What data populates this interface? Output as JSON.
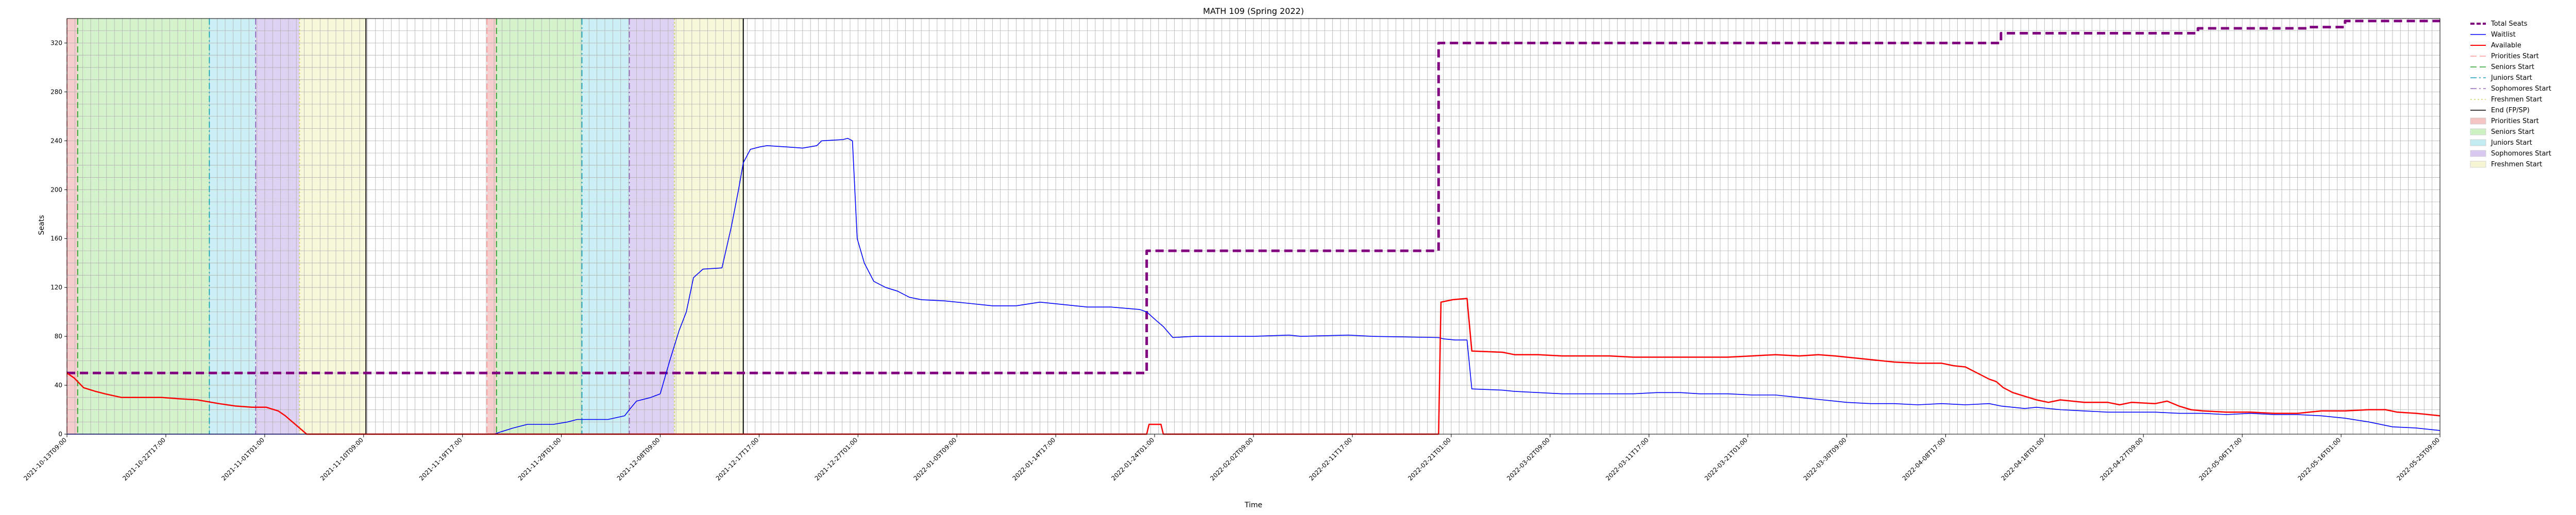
{
  "chart_data": {
    "type": "line",
    "title": "MATH 109 (Spring 2022)",
    "xlabel": "Time",
    "ylabel": "Seats",
    "ylim": [
      0,
      340
    ],
    "xlim": [
      0,
      100
    ],
    "yticks": [
      0,
      40,
      80,
      120,
      160,
      200,
      240,
      280,
      320
    ],
    "grid": true,
    "legend_position": "outside-right",
    "x_tick_labels": [
      "2021-10-13T09:00",
      "2021-10-22T17:00",
      "2021-11-01T01:00",
      "2021-11-10T09:00",
      "2021-11-19T17:00",
      "2021-11-29T01:00",
      "2021-12-08T09:00",
      "2021-12-17T17:00",
      "2021-12-27T01:00",
      "2022-01-05T09:00",
      "2022-01-14T17:00",
      "2022-01-24T01:00",
      "2022-02-02T09:00",
      "2022-02-11T17:00",
      "2022-02-21T01:00",
      "2022-03-02T09:00",
      "2022-03-11T17:00",
      "2022-03-21T01:00",
      "2022-03-30T09:00",
      "2022-04-08T17:00",
      "2022-04-18T01:00",
      "2022-04-27T09:00",
      "2022-05-06T17:00",
      "2022-05-16T01:00",
      "2022-05-25T09:00"
    ],
    "series": [
      {
        "name": "Total Seats",
        "color": "#800080",
        "style": "dashed",
        "points": [
          [
            0,
            50
          ],
          [
            45.5,
            50
          ],
          [
            45.5,
            150
          ],
          [
            57.8,
            150
          ],
          [
            57.8,
            320
          ],
          [
            81.5,
            320
          ],
          [
            81.5,
            328
          ],
          [
            89.8,
            328
          ],
          [
            89.8,
            332
          ],
          [
            94.5,
            332
          ],
          [
            94.5,
            333
          ],
          [
            96,
            333
          ],
          [
            96,
            338
          ],
          [
            100,
            338
          ]
        ]
      },
      {
        "name": "Waitlist",
        "color": "#0000ff",
        "style": "solid",
        "points": [
          [
            0,
            0
          ],
          [
            18,
            0
          ],
          [
            18.3,
            2
          ],
          [
            18.8,
            5
          ],
          [
            19.4,
            8
          ],
          [
            20.5,
            8
          ],
          [
            21.1,
            10
          ],
          [
            21.5,
            12
          ],
          [
            22.8,
            12
          ],
          [
            23.5,
            15
          ],
          [
            23.7,
            20
          ],
          [
            24,
            27
          ],
          [
            24.6,
            30
          ],
          [
            25,
            33
          ],
          [
            25.4,
            60
          ],
          [
            25.8,
            85
          ],
          [
            26.1,
            100
          ],
          [
            26.4,
            128
          ],
          [
            26.8,
            135
          ],
          [
            27.6,
            136
          ],
          [
            28,
            170
          ],
          [
            28.3,
            200
          ],
          [
            28.5,
            222
          ],
          [
            28.8,
            233
          ],
          [
            29.2,
            235
          ],
          [
            29.5,
            236
          ],
          [
            30.3,
            235
          ],
          [
            31,
            234
          ],
          [
            31.6,
            236
          ],
          [
            31.8,
            240
          ],
          [
            32.7,
            241
          ],
          [
            32.9,
            242
          ],
          [
            33.1,
            240
          ],
          [
            33.3,
            160
          ],
          [
            33.6,
            140
          ],
          [
            34,
            125
          ],
          [
            34.5,
            120
          ],
          [
            35,
            117
          ],
          [
            35.5,
            112
          ],
          [
            36,
            110
          ],
          [
            37,
            109
          ],
          [
            38,
            107
          ],
          [
            39,
            105
          ],
          [
            40,
            105
          ],
          [
            41,
            108
          ],
          [
            42,
            106
          ],
          [
            43,
            104
          ],
          [
            44,
            104
          ],
          [
            45.2,
            102
          ],
          [
            45.5,
            100
          ],
          [
            45.9,
            93
          ],
          [
            46.2,
            88
          ],
          [
            46.6,
            79
          ],
          [
            47.5,
            80
          ],
          [
            50,
            80
          ],
          [
            51.5,
            81
          ],
          [
            52,
            80
          ],
          [
            54,
            81
          ],
          [
            55,
            80
          ],
          [
            57.8,
            79
          ],
          [
            58,
            78
          ],
          [
            58.5,
            77
          ],
          [
            59,
            77
          ],
          [
            59.2,
            37
          ],
          [
            60.5,
            36
          ],
          [
            61,
            35
          ],
          [
            62,
            34
          ],
          [
            63,
            33
          ],
          [
            64,
            33
          ],
          [
            65,
            33
          ],
          [
            66,
            33
          ],
          [
            67,
            34
          ],
          [
            68,
            34
          ],
          [
            68.8,
            33
          ],
          [
            70,
            33
          ],
          [
            71,
            32
          ],
          [
            72,
            32
          ],
          [
            73,
            30
          ],
          [
            74,
            28
          ],
          [
            75,
            26
          ],
          [
            76,
            25
          ],
          [
            77,
            25
          ],
          [
            78,
            24
          ],
          [
            79,
            25
          ],
          [
            80,
            24
          ],
          [
            81,
            25
          ],
          [
            81.5,
            23
          ],
          [
            82,
            22
          ],
          [
            82.5,
            21
          ],
          [
            83,
            22
          ],
          [
            84,
            20
          ],
          [
            85,
            19
          ],
          [
            86,
            18
          ],
          [
            87,
            18
          ],
          [
            88,
            18
          ],
          [
            89,
            17
          ],
          [
            90,
            17
          ],
          [
            91,
            16
          ],
          [
            92,
            17
          ],
          [
            93,
            16
          ],
          [
            94,
            16
          ],
          [
            95,
            15
          ],
          [
            96,
            13
          ],
          [
            97,
            10
          ],
          [
            98,
            6
          ],
          [
            99,
            5
          ],
          [
            100,
            3
          ]
        ]
      },
      {
        "name": "Available",
        "color": "#ff0000",
        "style": "solid",
        "points": [
          [
            0,
            50
          ],
          [
            0.3,
            46
          ],
          [
            0.7,
            38
          ],
          [
            1.2,
            35
          ],
          [
            1.6,
            33
          ],
          [
            2.3,
            30
          ],
          [
            3.5,
            30
          ],
          [
            4,
            30
          ],
          [
            4.7,
            29
          ],
          [
            5.5,
            28
          ],
          [
            6.4,
            25
          ],
          [
            7.1,
            23
          ],
          [
            7.8,
            22
          ],
          [
            8.4,
            22
          ],
          [
            8.9,
            19
          ],
          [
            9.2,
            15
          ],
          [
            9.5,
            10
          ],
          [
            9.8,
            5
          ],
          [
            10.1,
            0
          ],
          [
            45.5,
            0
          ],
          [
            45.6,
            8
          ],
          [
            46.1,
            8
          ],
          [
            46.2,
            0
          ],
          [
            57.8,
            0
          ],
          [
            57.9,
            108
          ],
          [
            58.4,
            110
          ],
          [
            59,
            111
          ],
          [
            59.2,
            68
          ],
          [
            60.5,
            67
          ],
          [
            61,
            65
          ],
          [
            62,
            65
          ],
          [
            63,
            64
          ],
          [
            64,
            64
          ],
          [
            65,
            64
          ],
          [
            66,
            63
          ],
          [
            67,
            63
          ],
          [
            68,
            63
          ],
          [
            69,
            63
          ],
          [
            70,
            63
          ],
          [
            71,
            64
          ],
          [
            72,
            65
          ],
          [
            73,
            64
          ],
          [
            73.8,
            65
          ],
          [
            74.5,
            64
          ],
          [
            75,
            63
          ],
          [
            76,
            61
          ],
          [
            77,
            59
          ],
          [
            78,
            58
          ],
          [
            79,
            58
          ],
          [
            79.5,
            56
          ],
          [
            80,
            55
          ],
          [
            80.5,
            50
          ],
          [
            81,
            45
          ],
          [
            81.3,
            43
          ],
          [
            81.6,
            38
          ],
          [
            82,
            34
          ],
          [
            82.5,
            31
          ],
          [
            83,
            28
          ],
          [
            83.5,
            26
          ],
          [
            84,
            28
          ],
          [
            84.5,
            27
          ],
          [
            85,
            26
          ],
          [
            86,
            26
          ],
          [
            86.5,
            24
          ],
          [
            87,
            26
          ],
          [
            88,
            25
          ],
          [
            88.5,
            27
          ],
          [
            89,
            23
          ],
          [
            89.5,
            20
          ],
          [
            90,
            19
          ],
          [
            91,
            18
          ],
          [
            92,
            18
          ],
          [
            93,
            17
          ],
          [
            94,
            17
          ],
          [
            95,
            19
          ],
          [
            96,
            19
          ],
          [
            97,
            20
          ],
          [
            97.7,
            20
          ],
          [
            98.2,
            18
          ],
          [
            99,
            17
          ],
          [
            100,
            15
          ]
        ]
      },
      {
        "name": "Waitlist",
        "color": "#0000ff",
        "style": "solid",
        "points": [
          [
            0,
            0
          ],
          [
            0,
            0
          ]
        ]
      }
    ],
    "vlines": [
      {
        "name": "Priorities Start",
        "color": "#ff9999",
        "style": "dashed",
        "x": [
          0,
          17.7
        ]
      },
      {
        "name": "Seniors Start",
        "color": "#2ca02c",
        "style": "dashed",
        "x": [
          0.45,
          18.1
        ]
      },
      {
        "name": "Juniors Start",
        "color": "#17a2b8",
        "style": "dashdot",
        "x": [
          6.0,
          21.7
        ]
      },
      {
        "name": "Sophomores Start",
        "color": "#9467bd",
        "style": "dashdot",
        "x": [
          7.95,
          23.7
        ]
      },
      {
        "name": "Freshmen Start",
        "color": "#d4d466",
        "style": "dotted",
        "x": [
          9.8,
          25.6
        ]
      },
      {
        "name": "End (FP/SP)",
        "color": "#000000",
        "style": "solid",
        "x": [
          12.6,
          28.5
        ]
      }
    ],
    "spans": [
      {
        "name": "Priorities Start",
        "color": "#f4c4c4",
        "ranges": [
          [
            0,
            0.45
          ],
          [
            17.7,
            18.1
          ]
        ]
      },
      {
        "name": "Seniors Start",
        "color": "#cdf1c3",
        "ranges": [
          [
            0.45,
            6.0
          ],
          [
            18.1,
            21.7
          ]
        ]
      },
      {
        "name": "Juniors Start",
        "color": "#c2ecf2",
        "ranges": [
          [
            6.0,
            7.95
          ],
          [
            21.7,
            23.7
          ]
        ]
      },
      {
        "name": "Sophomores Start",
        "color": "#d9c9f0",
        "ranges": [
          [
            7.95,
            9.8
          ],
          [
            23.7,
            25.6
          ]
        ]
      },
      {
        "name": "Freshmen Start",
        "color": "#f6f6d4",
        "ranges": [
          [
            9.8,
            12.6
          ],
          [
            25.6,
            28.5
          ]
        ]
      }
    ],
    "legend": [
      {
        "label": "Total Seats",
        "kind": "line",
        "color": "#800080",
        "style": "dashed",
        "width": 4
      },
      {
        "label": "Waitlist",
        "kind": "line",
        "color": "#0000ff",
        "style": "solid",
        "width": 1.5
      },
      {
        "label": "Available",
        "kind": "line",
        "color": "#ff0000",
        "style": "solid",
        "width": 2
      },
      {
        "label": "Priorities Start",
        "kind": "line",
        "color": "#ff9999",
        "style": "dashed",
        "width": 1.5
      },
      {
        "label": "Seniors Start",
        "kind": "line",
        "color": "#2ca02c",
        "style": "dashed",
        "width": 1.5
      },
      {
        "label": "Juniors Start",
        "kind": "line",
        "color": "#17a2b8",
        "style": "dashdot",
        "width": 1.5
      },
      {
        "label": "Sophomores Start",
        "kind": "line",
        "color": "#9467bd",
        "style": "dashdot",
        "width": 1.5
      },
      {
        "label": "Freshmen Start",
        "kind": "line",
        "color": "#d4d466",
        "style": "dotted",
        "width": 1.5
      },
      {
        "label": "End (FP/SP)",
        "kind": "line",
        "color": "#000000",
        "style": "solid",
        "width": 1.5
      },
      {
        "label": "Priorities Start",
        "kind": "patch",
        "color": "#f4c4c4"
      },
      {
        "label": "Seniors Start",
        "kind": "patch",
        "color": "#cdf1c3"
      },
      {
        "label": "Juniors Start",
        "kind": "patch",
        "color": "#c2ecf2"
      },
      {
        "label": "Sophomores Start",
        "kind": "patch",
        "color": "#d9c9f0"
      },
      {
        "label": "Freshmen Start",
        "kind": "patch",
        "color": "#f6f6d4"
      }
    ]
  }
}
